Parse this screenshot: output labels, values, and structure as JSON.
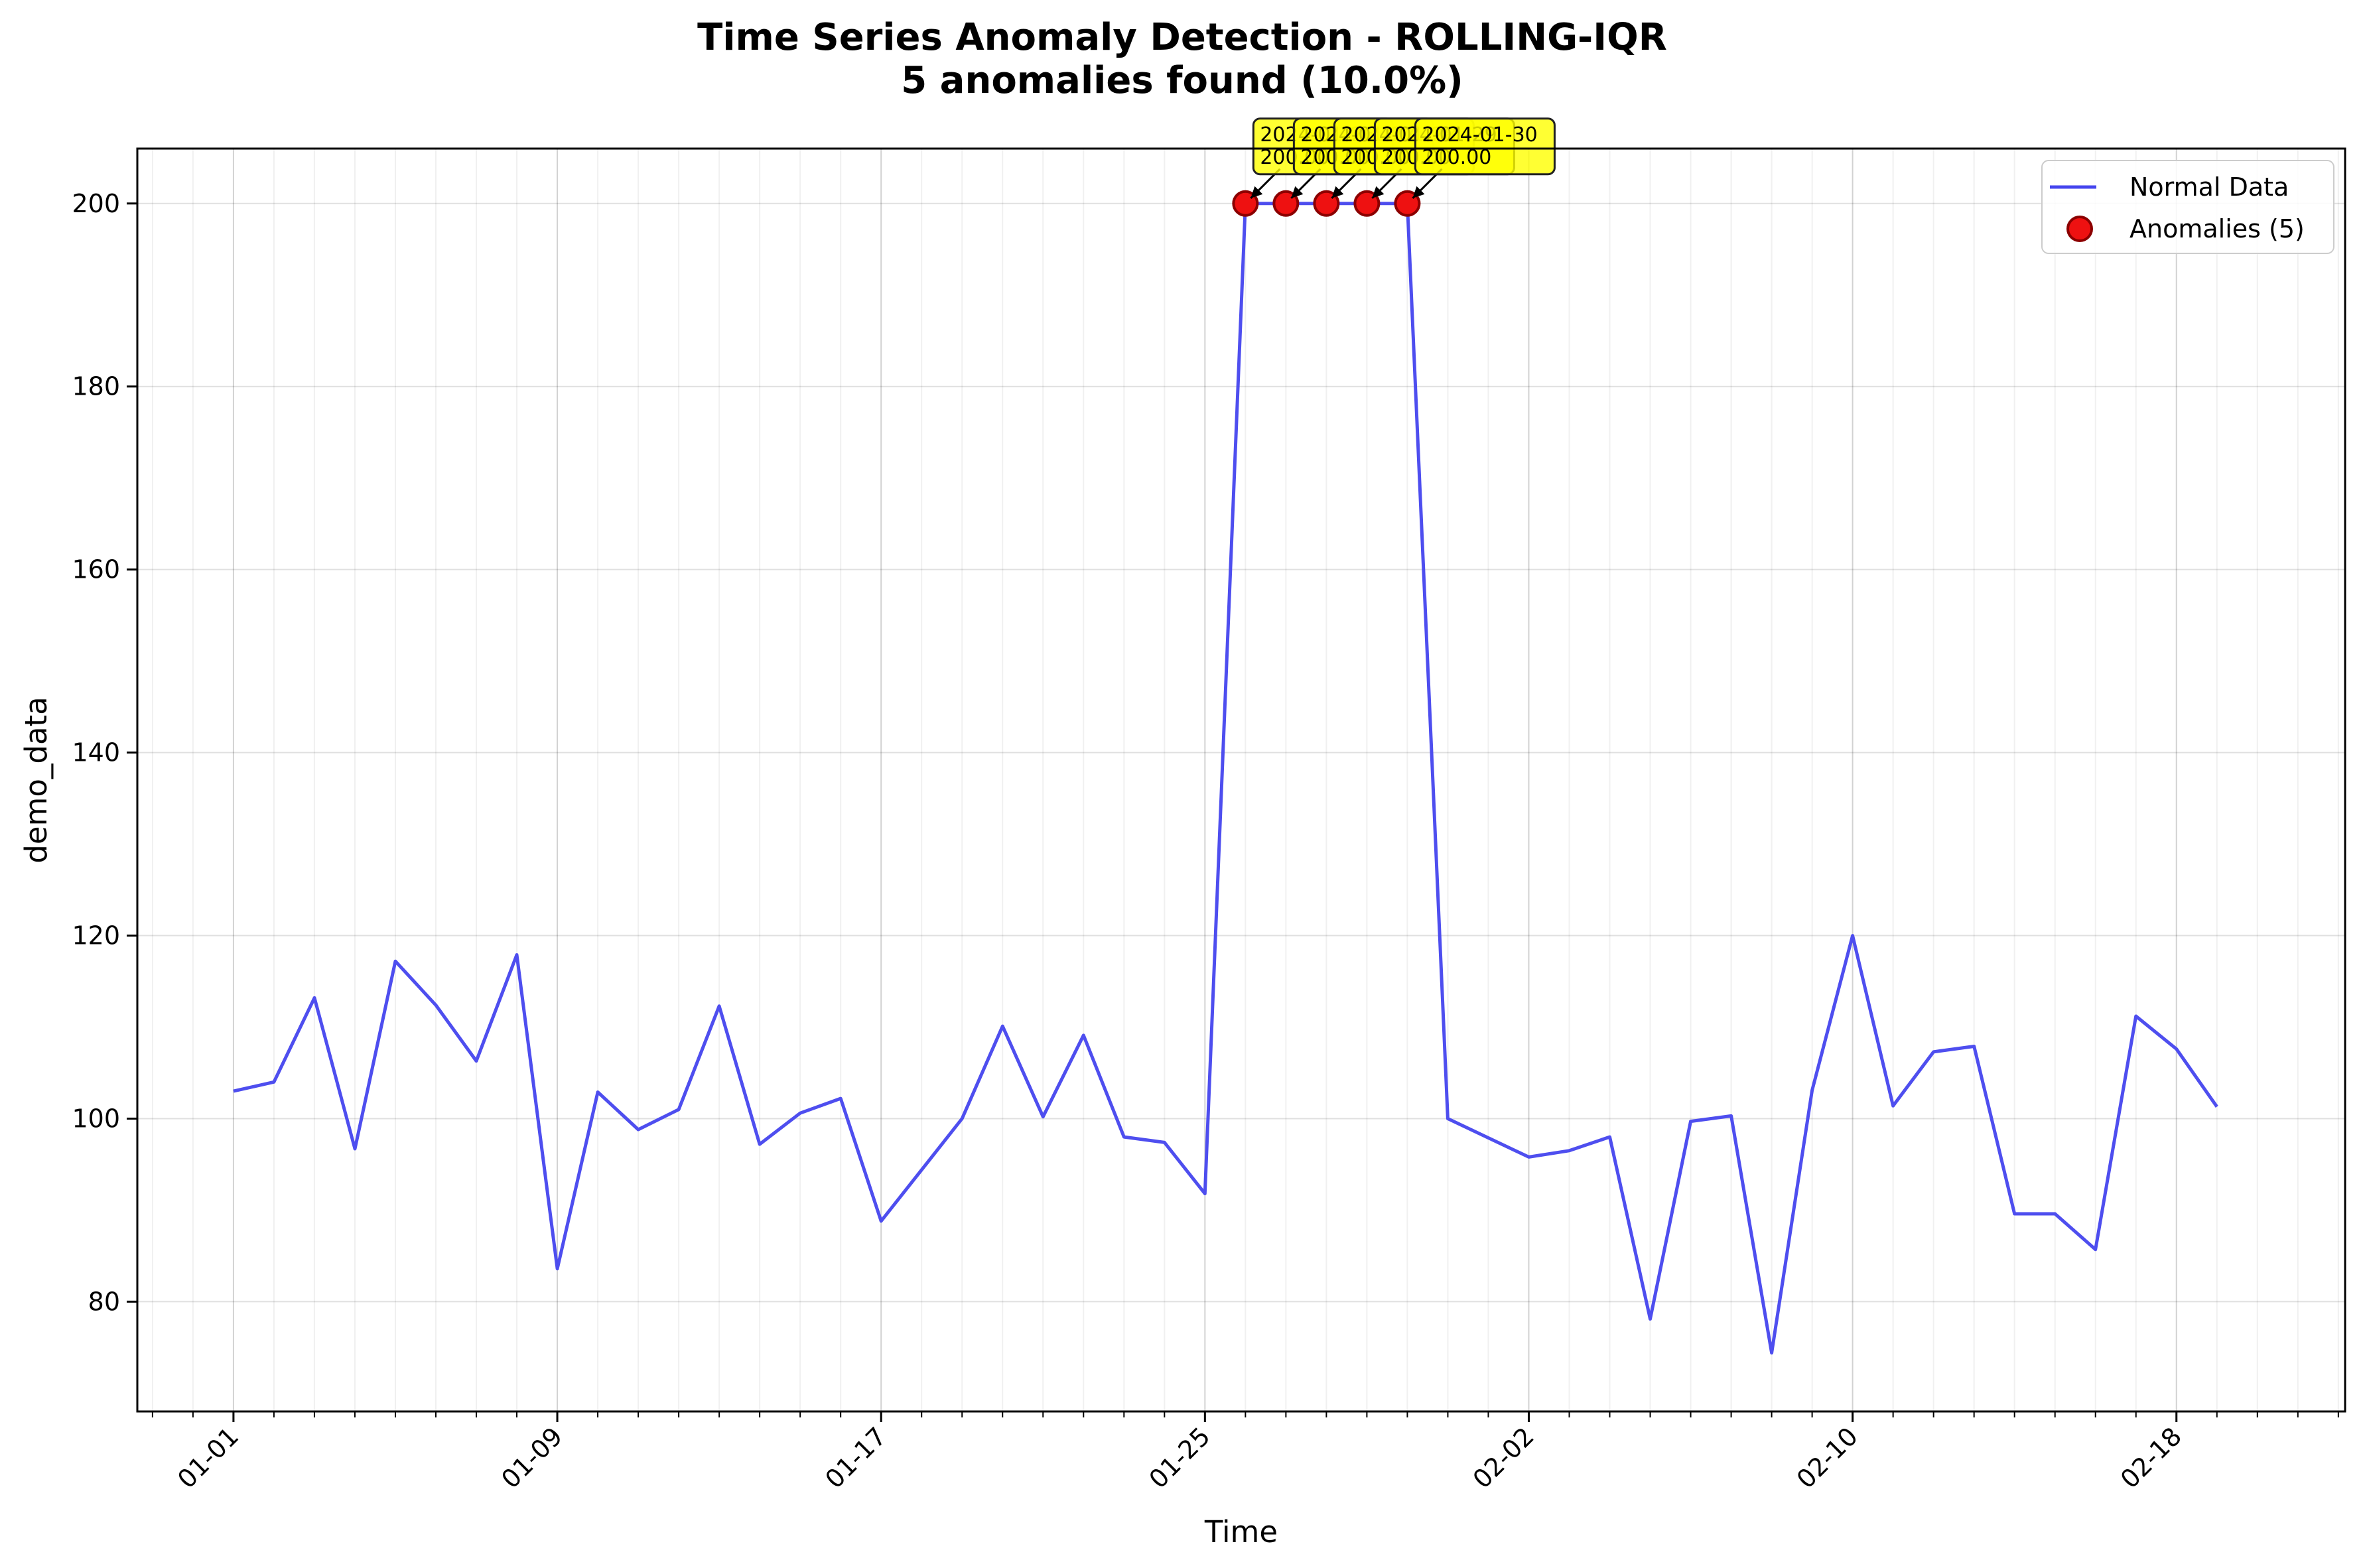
{
  "chart_data": {
    "type": "line",
    "title": "Time Series Anomaly Detection - ROLLING-IQR",
    "subtitle": "5 anomalies found (10.0%)",
    "xlabel": "Time",
    "ylabel": "demo_data",
    "x_start": "2024-01-01",
    "x_ticks": [
      "01-01",
      "01-09",
      "01-17",
      "01-25",
      "02-02",
      "02-10",
      "02-18"
    ],
    "y_ticks": [
      80,
      100,
      120,
      140,
      160,
      180,
      200
    ],
    "xlim": [
      "2023-12-29T15:00",
      "2024-02-22T04:00"
    ],
    "ylim": [
      68,
      206
    ],
    "grid": true,
    "legend_position": "top-right",
    "series": [
      {
        "name": "Normal Data",
        "color": "#4444ee",
        "x": [
          "2024-01-01",
          "2024-01-02",
          "2024-01-03",
          "2024-01-04",
          "2024-01-05",
          "2024-01-06",
          "2024-01-07",
          "2024-01-08",
          "2024-01-09",
          "2024-01-10",
          "2024-01-11",
          "2024-01-12",
          "2024-01-13",
          "2024-01-14",
          "2024-01-15",
          "2024-01-16",
          "2024-01-17",
          "2024-01-18",
          "2024-01-19",
          "2024-01-20",
          "2024-01-21",
          "2024-01-22",
          "2024-01-23",
          "2024-01-24",
          "2024-01-25",
          "2024-01-26",
          "2024-01-27",
          "2024-01-28",
          "2024-01-29",
          "2024-01-30",
          "2024-01-31",
          "2024-02-01",
          "2024-02-02",
          "2024-02-03",
          "2024-02-04",
          "2024-02-05",
          "2024-02-06",
          "2024-02-07",
          "2024-02-08",
          "2024-02-09",
          "2024-02-10",
          "2024-02-11",
          "2024-02-12",
          "2024-02-13",
          "2024-02-14",
          "2024-02-15",
          "2024-02-16",
          "2024-02-17",
          "2024-02-18",
          "2024-02-19"
        ],
        "values": [
          103.0,
          104.0,
          113.2,
          96.7,
          117.2,
          112.4,
          106.3,
          117.9,
          83.6,
          102.9,
          98.8,
          101.0,
          112.3,
          97.2,
          100.6,
          102.2,
          88.8,
          94.4,
          100.0,
          110.1,
          100.2,
          109.1,
          98.0,
          97.4,
          91.8,
          200.0,
          200.0,
          200.0,
          200.0,
          200.0,
          100.0,
          97.9,
          95.8,
          96.5,
          98.0,
          78.1,
          99.7,
          100.3,
          74.4,
          103.1,
          120.0,
          101.4,
          107.3,
          107.9,
          89.6,
          89.6,
          85.7,
          111.2,
          107.6,
          101.3
        ]
      },
      {
        "name": "Anomalies (5)",
        "color": "#ee1111",
        "x": [
          "2024-01-26",
          "2024-01-27",
          "2024-01-28",
          "2024-01-29",
          "2024-01-30"
        ],
        "values": [
          200.0,
          200.0,
          200.0,
          200.0,
          200.0
        ]
      }
    ],
    "annotations": [
      {
        "date": "2024-01-26",
        "line1": "2024-01-26",
        "line2": "200.00"
      },
      {
        "date": "2024-01-27",
        "line1": "2024-01-27",
        "line2": "200.00"
      },
      {
        "date": "2024-01-28",
        "line1": "2024-01-28",
        "line2": "200.00"
      },
      {
        "date": "2024-01-29",
        "line1": "2024-01-29",
        "line2": "200.00"
      },
      {
        "date": "2024-01-30",
        "line1": "2024-01-30",
        "line2": "200.00"
      }
    ]
  }
}
